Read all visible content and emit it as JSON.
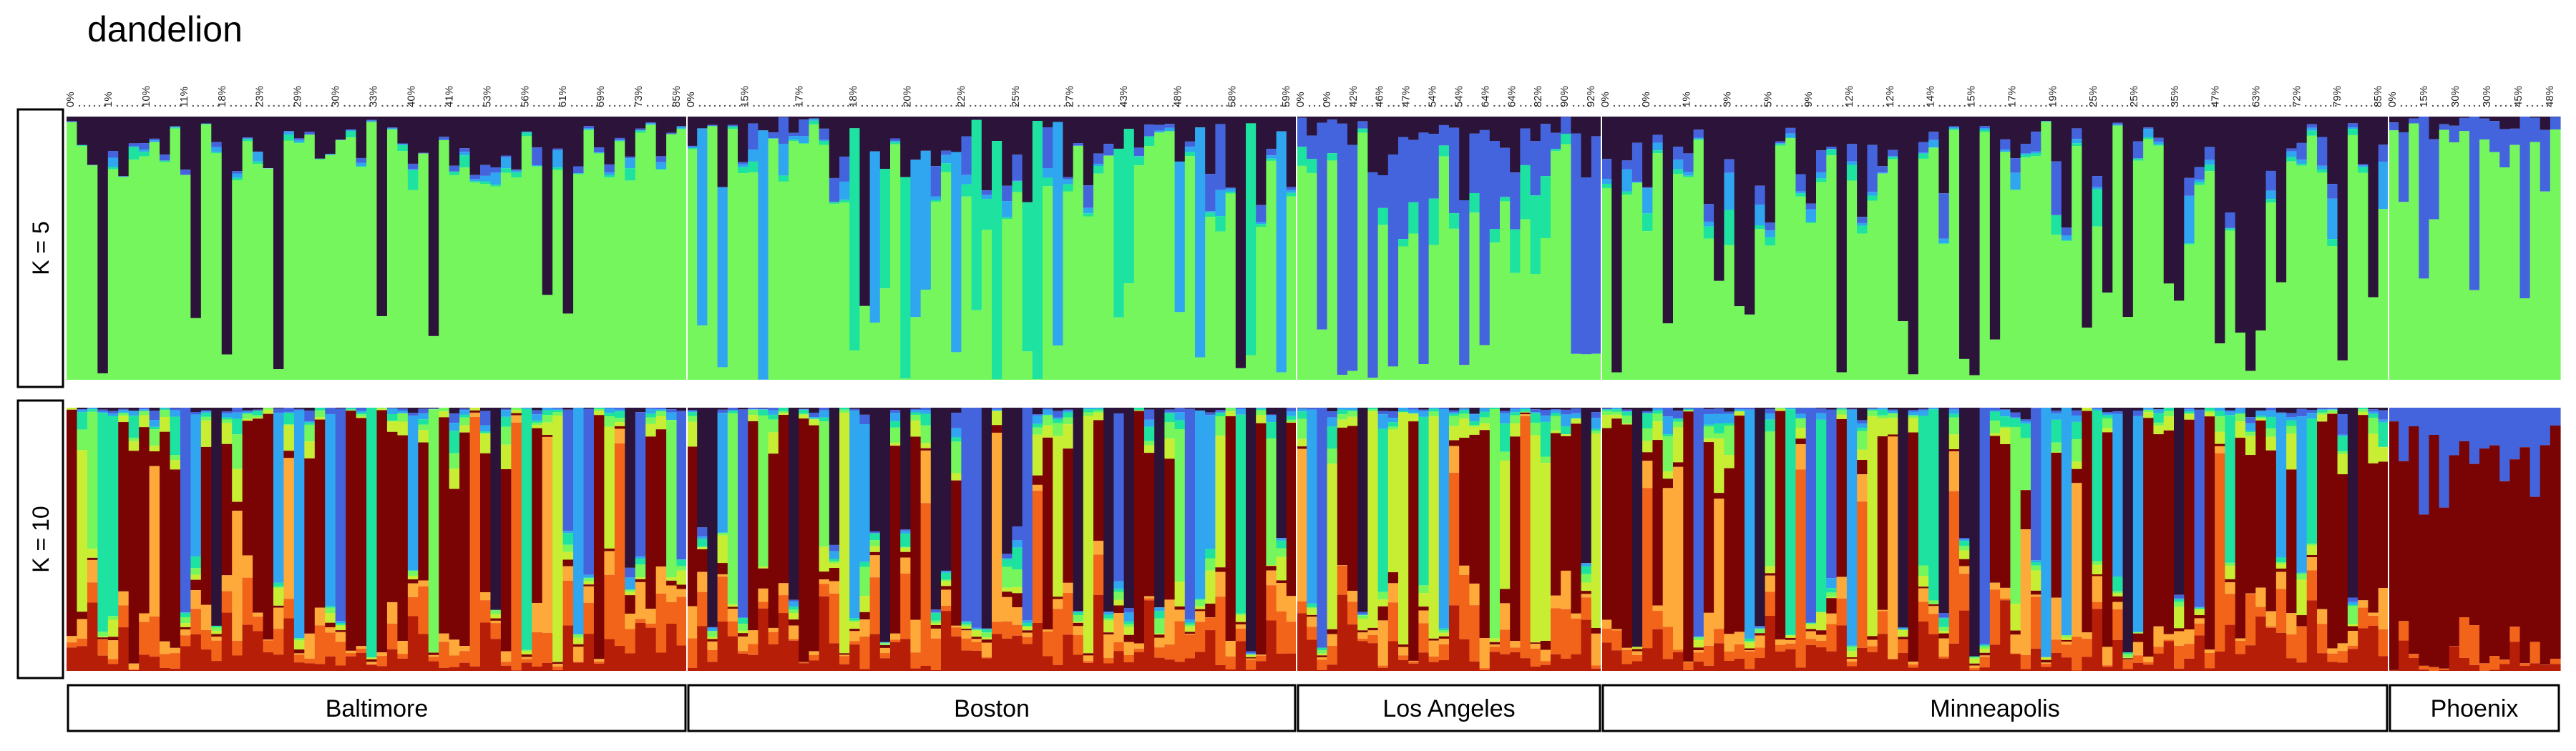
{
  "title": "dandelion",
  "colors": {
    "k5": [
      "#74F65C",
      "#2B1339",
      "#4464DE",
      "#30A5F0",
      "#1DE2A0"
    ],
    "k10": [
      "#7A0403",
      "#B71E07",
      "#F1641A",
      "#FDAA3A",
      "#C8EE33",
      "#74F65C",
      "#1DE2A0",
      "#30A5F0",
      "#4464DE",
      "#2B1339"
    ]
  },
  "chart_data": {
    "type": "bar",
    "subtype": "stacked-admixture",
    "title": "dandelion",
    "rows": [
      {
        "label": "K = 5",
        "k": 5
      },
      {
        "label": "K = 10",
        "k": 10
      }
    ],
    "populations": [
      {
        "name": "Baltimore",
        "n": 60,
        "tick_labels": [
          "0%",
          "1%",
          "10%",
          "11%",
          "18%",
          "23%",
          "29%",
          "30%",
          "33%",
          "40%",
          "41%",
          "53%",
          "56%",
          "61%",
          "69%",
          "73%",
          "85%"
        ]
      },
      {
        "name": "Boston",
        "n": 60,
        "tick_labels": [
          "0%",
          "15%",
          "17%",
          "18%",
          "20%",
          "22%",
          "25%",
          "27%",
          "43%",
          "48%",
          "58%",
          "59%"
        ]
      },
      {
        "name": "Los Angeles",
        "n": 30,
        "tick_labels": [
          "0%",
          "0%",
          "42%",
          "46%",
          "47%",
          "54%",
          "54%",
          "64%",
          "64%",
          "82%",
          "90%",
          "92%"
        ]
      },
      {
        "name": "Minneapolis",
        "n": 77,
        "tick_labels": [
          "0%",
          "0%",
          "1%",
          "3%",
          "5%",
          "9%",
          "12%",
          "12%",
          "14%",
          "15%",
          "17%",
          "19%",
          "25%",
          "25%",
          "35%",
          "47%",
          "63%",
          "72%",
          "79%",
          "85%"
        ]
      },
      {
        "name": "Phoenix",
        "n": 17,
        "tick_labels": [
          "0%",
          "15%",
          "30%",
          "30%",
          "45%",
          "48%"
        ]
      }
    ]
  }
}
